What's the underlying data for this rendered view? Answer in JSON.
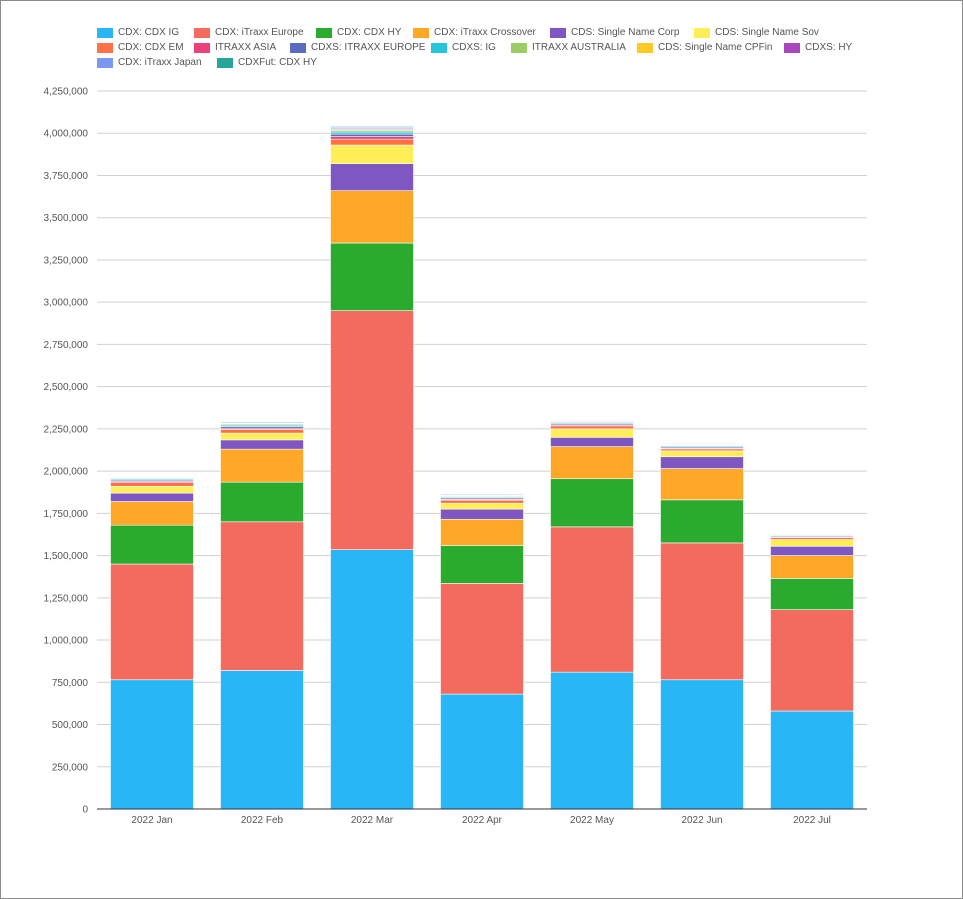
{
  "chart_data": {
    "type": "bar",
    "stacked": true,
    "title": "",
    "xlabel": "",
    "ylabel": "",
    "ylim": [
      0,
      4250000
    ],
    "grid": true,
    "legend_position": "top",
    "y_ticks": [
      "0",
      "250,000",
      "500,000",
      "750,000",
      "1,000,000",
      "1,250,000",
      "1,500,000",
      "1,750,000",
      "2,000,000",
      "2,250,000",
      "2,500,000",
      "2,750,000",
      "3,000,000",
      "3,250,000",
      "3,500,000",
      "3,750,000",
      "4,000,000",
      "4,250,000"
    ],
    "categories": [
      "2022 Jan",
      "2022 Feb",
      "2022 Mar",
      "2022 Apr",
      "2022 May",
      "2022 Jun",
      "2022 Jul"
    ],
    "series": [
      {
        "name": "CDX: CDX IG",
        "color": "#29b6f6",
        "values": [
          765000,
          820000,
          1535000,
          680000,
          810000,
          765000,
          580000
        ]
      },
      {
        "name": "CDX: iTraxx Europe",
        "color": "#f26b5e",
        "values": [
          685000,
          880000,
          1415000,
          655000,
          860000,
          810000,
          600000
        ]
      },
      {
        "name": "CDX: CDX HY",
        "color": "#2aab2e",
        "values": [
          230000,
          235000,
          400000,
          225000,
          285000,
          255000,
          185000
        ]
      },
      {
        "name": "CDX: iTraxx Crossover",
        "color": "#ffa726",
        "values": [
          140000,
          195000,
          310000,
          155000,
          190000,
          185000,
          135000
        ]
      },
      {
        "name": "CDS: Single Name Corp",
        "color": "#7e57c2",
        "values": [
          50000,
          55000,
          160000,
          60000,
          55000,
          70000,
          55000
        ]
      },
      {
        "name": "CDS: Single Name Sov",
        "color": "#ffee58",
        "values": [
          40000,
          40000,
          110000,
          35000,
          50000,
          35000,
          40000
        ]
      },
      {
        "name": "CDX: CDX EM",
        "color": "#ff7043",
        "values": [
          22000,
          22000,
          35000,
          18000,
          18000,
          12000,
          12000
        ]
      },
      {
        "name": "ITRAXX ASIA",
        "color": "#ec407a",
        "values": [
          6000,
          7000,
          15000,
          5000,
          6000,
          5000,
          4000
        ]
      },
      {
        "name": "CDXS: ITRAXX EUROPE",
        "color": "#5c6bc0",
        "values": [
          8000,
          10000,
          15000,
          8000,
          8000,
          7000,
          6000
        ]
      },
      {
        "name": "CDXS: IG",
        "color": "#26c6da",
        "values": [
          6000,
          8000,
          12000,
          6000,
          6000,
          6000,
          5000
        ]
      },
      {
        "name": "ITRAXX AUSTRALIA",
        "color": "#9ccc65",
        "values": [
          5000,
          6000,
          10000,
          5000,
          5000,
          4000,
          4000
        ]
      },
      {
        "name": "CDS: Single Name CPFin",
        "color": "#ffca28",
        "values": [
          3000,
          3000,
          5000,
          3000,
          3000,
          3000,
          3000
        ]
      },
      {
        "name": "CDXS: HY",
        "color": "#ab47bc",
        "values": [
          3000,
          3000,
          5000,
          3000,
          3000,
          3000,
          3000
        ]
      },
      {
        "name": "CDX: iTraxx Japan",
        "color": "#7b97f4",
        "values": [
          4000,
          6000,
          8000,
          5000,
          4000,
          4000,
          3000
        ]
      },
      {
        "name": "CDXFut: CDX HY",
        "color": "#26a69a",
        "values": [
          3000,
          3000,
          5000,
          2000,
          2000,
          2000,
          2000
        ]
      }
    ]
  }
}
